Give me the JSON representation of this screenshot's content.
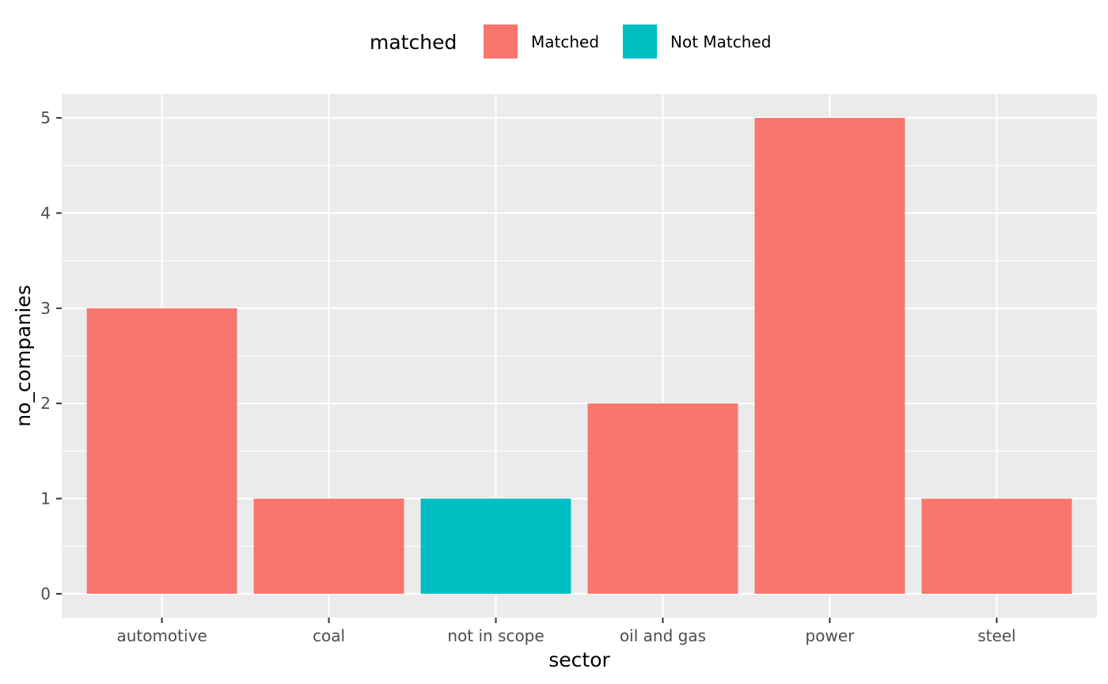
{
  "chart_data": {
    "type": "bar",
    "title": "",
    "xlabel": "sector",
    "ylabel": "no_companies",
    "categories": [
      "automotive",
      "coal",
      "not in scope",
      "oil and gas",
      "power",
      "steel"
    ],
    "values": [
      3,
      1,
      1,
      2,
      5,
      1
    ],
    "groups": [
      "Matched",
      "Matched",
      "Not Matched",
      "Matched",
      "Matched",
      "Matched"
    ],
    "ylim": [
      0,
      5.25
    ],
    "yticks": [
      0,
      1,
      2,
      3,
      4,
      5
    ],
    "grid": true,
    "legend": {
      "title": "matched",
      "placement": "top",
      "items": [
        {
          "label": "Matched",
          "color": "#F8766D"
        },
        {
          "label": "Not Matched",
          "color": "#00BFC4"
        }
      ]
    }
  },
  "colors": {
    "panel_background": "#EBEBEB",
    "grid": "#FFFFFF",
    "tick_text": "#4D4D4D",
    "tick_mark": "#333333"
  }
}
